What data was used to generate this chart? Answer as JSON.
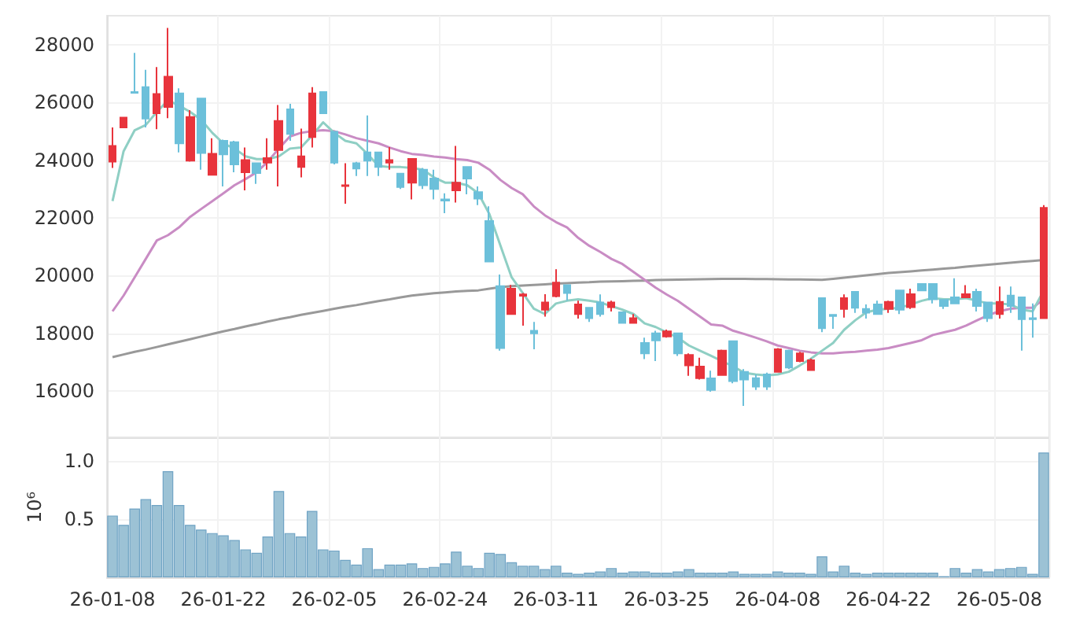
{
  "chart_data": [
    {
      "type": "candlestick",
      "categories": [
        null,
        null,
        null,
        null,
        null,
        null,
        null,
        null,
        null,
        null,
        null,
        null,
        null,
        null,
        null,
        null,
        null,
        null,
        null,
        null,
        null,
        null,
        null,
        null,
        null,
        null,
        null,
        null,
        null,
        null,
        null,
        null,
        null,
        null,
        null,
        null,
        null,
        null,
        null,
        null,
        null,
        null,
        null,
        null,
        null,
        null,
        null,
        null,
        null,
        null,
        null,
        null,
        null,
        null,
        null,
        null,
        null,
        null,
        null,
        null,
        null,
        null,
        null,
        null,
        null,
        null,
        null,
        null,
        null,
        null,
        null,
        null,
        null,
        null,
        null,
        null,
        null,
        null,
        null,
        null,
        null,
        null,
        null,
        null,
        null
      ],
      "ylim": [
        14400,
        29000
      ],
      "yticks": [
        16000,
        18000,
        20000,
        22000,
        24000,
        26000,
        28000
      ],
      "grid": true,
      "tick_labels": "y",
      "series": [
        {
          "type": "line",
          "color": "#999999",
          "values": [
            17180,
            17270,
            17360,
            17440,
            17530,
            17620,
            17710,
            17800,
            17890,
            17980,
            18070,
            18150,
            18240,
            18320,
            18410,
            18490,
            18560,
            18640,
            18710,
            18780,
            18855,
            18920,
            18980,
            19050,
            19120,
            19180,
            19250,
            19310,
            19350,
            19390,
            19420,
            19450,
            19470,
            19490,
            19550,
            19600,
            19635,
            19660,
            19680,
            19700,
            19725,
            19740,
            19760,
            19770,
            19790,
            19800,
            19810,
            19820,
            19830,
            19845,
            19855,
            19860,
            19870,
            19875,
            19885,
            19890,
            19890,
            19890,
            19885,
            19880,
            19875,
            19870,
            19865,
            19860,
            19855,
            19890,
            19930,
            19970,
            20010,
            20050,
            20090,
            20120,
            20150,
            20180,
            20210,
            20240,
            20270,
            20310,
            20345,
            20380,
            20410,
            20445,
            20480,
            20510,
            20545
          ]
        },
        {
          "type": "line",
          "color": "#c98cc4",
          "values": [
            18765,
            19310,
            19945,
            20580,
            21220,
            21400,
            21670,
            22035,
            22310,
            22580,
            22850,
            23130,
            23345,
            23580,
            23945,
            24400,
            24820,
            24945,
            25000,
            25035,
            25000,
            24890,
            24760,
            24670,
            24580,
            24435,
            24310,
            24215,
            24180,
            24125,
            24090,
            24035,
            24000,
            23910,
            23670,
            23310,
            23035,
            22820,
            22400,
            22090,
            21855,
            21670,
            21310,
            21035,
            20820,
            20580,
            20400,
            20125,
            19855,
            19580,
            19345,
            19125,
            18855,
            18580,
            18310,
            18270,
            18090,
            17980,
            17855,
            17725,
            17580,
            17490,
            17400,
            17345,
            17310,
            17310,
            17345,
            17365,
            17400,
            17435,
            17490,
            17580,
            17670,
            17765,
            17945,
            18035,
            18125,
            18270,
            18455,
            18635,
            18765,
            18855,
            18890,
            18890,
            19180
          ]
        },
        {
          "type": "line",
          "color": "#8fcfc4",
          "values": [
            22580,
            24310,
            25035,
            25217,
            25670,
            26070,
            25890,
            25670,
            25400,
            24945,
            24580,
            24400,
            24130,
            24035,
            24035,
            24130,
            24400,
            24440,
            24850,
            25310,
            24945,
            24670,
            24580,
            24215,
            23800,
            23760,
            23760,
            23730,
            23670,
            23400,
            23220,
            23220,
            23130,
            22850,
            22130,
            21035,
            19945,
            19400,
            18855,
            18670,
            19035,
            19130,
            19180,
            19130,
            19070,
            18945,
            18820,
            18670,
            18345,
            18220,
            18035,
            17855,
            17580,
            17400,
            17220,
            17035,
            16855,
            16635,
            16580,
            16545,
            16580,
            16670,
            16890,
            17125,
            17400,
            17670,
            18125,
            18455,
            18730,
            18820,
            18855,
            18890,
            19000,
            19130,
            19220,
            19180,
            19180,
            19220,
            19130,
            19035,
            19035,
            19000,
            18820,
            18765,
            19490
          ]
        },
        {
          "type": "candlestick",
          "ohlc": [
            [
              23950,
              25130,
              23730,
              24490
            ],
            [
              25130,
              25470,
              25130,
              25470
            ],
            [
              26360,
              27710,
              26320,
              26330
            ],
            [
              26530,
              27130,
              25130,
              25440
            ],
            [
              25620,
              27220,
              25070,
              26290
            ],
            [
              25840,
              28580,
              25450,
              26890
            ],
            [
              26310,
              26490,
              24270,
              24580
            ],
            [
              23980,
              25730,
              23950,
              25490
            ],
            [
              26130,
              26160,
              23670,
              24250
            ],
            [
              23490,
              24760,
              23490,
              24220
            ],
            [
              24670,
              24710,
              23090,
              24200
            ],
            [
              24620,
              24670,
              23580,
              23850
            ],
            [
              23580,
              24440,
              22950,
              24000
            ],
            [
              23890,
              23890,
              23180,
              23550
            ],
            [
              23910,
              24760,
              23670,
              24070
            ],
            [
              24350,
              25910,
              23090,
              25360
            ],
            [
              25760,
              25950,
              24670,
              24910
            ],
            [
              23760,
              25090,
              23400,
              24130
            ],
            [
              24800,
              26530,
              24440,
              26310
            ],
            [
              26360,
              26360,
              25620,
              25620
            ],
            [
              24980,
              24980,
              23850,
              23910
            ],
            [
              23100,
              23890,
              22490,
              23130
            ],
            [
              23890,
              23940,
              23450,
              23710
            ],
            [
              24270,
              25550,
              23450,
              23980
            ],
            [
              24270,
              24270,
              23450,
              23760
            ],
            [
              23910,
              24450,
              23670,
              24000
            ],
            [
              23530,
              23530,
              23000,
              23070
            ],
            [
              23220,
              24040,
              22640,
              24040
            ],
            [
              23670,
              23730,
              23000,
              23130
            ],
            [
              23360,
              23670,
              22640,
              23000
            ],
            [
              22640,
              22850,
              22160,
              22600
            ],
            [
              22950,
              24490,
              22530,
              23220
            ],
            [
              23760,
              23760,
              22820,
              23360
            ],
            [
              22890,
              23090,
              22440,
              22670
            ],
            [
              21890,
              22400,
              20490,
              20490
            ],
            [
              19640,
              20040,
              17400,
              17490
            ],
            [
              18670,
              19680,
              18670,
              19550
            ],
            [
              19300,
              19400,
              18270,
              19350
            ],
            [
              18090,
              18400,
              17450,
              18000
            ],
            [
              18820,
              19360,
              18580,
              19070
            ],
            [
              19290,
              20220,
              19250,
              19760
            ],
            [
              19670,
              19670,
              19130,
              19400
            ],
            [
              18670,
              19130,
              18510,
              19000
            ],
            [
              18890,
              18890,
              18400,
              18530
            ],
            [
              19070,
              19350,
              18580,
              18670
            ],
            [
              18910,
              19130,
              18760,
              19070
            ],
            [
              18730,
              18730,
              18360,
              18360
            ],
            [
              18360,
              18670,
              18360,
              18530
            ],
            [
              17670,
              17850,
              17110,
              17310
            ],
            [
              18000,
              18090,
              17040,
              17760
            ],
            [
              17890,
              18130,
              17850,
              18070
            ],
            [
              18000,
              18000,
              17220,
              17310
            ],
            [
              16890,
              17310,
              16530,
              17250
            ],
            [
              16450,
              17160,
              16400,
              16850
            ],
            [
              16440,
              16710,
              15980,
              16040
            ],
            [
              16560,
              17440,
              16530,
              17400
            ],
            [
              17730,
              17760,
              16270,
              16350
            ],
            [
              16670,
              16760,
              15490,
              16400
            ],
            [
              16450,
              16580,
              16040,
              16160
            ],
            [
              16580,
              16640,
              16040,
              16160
            ],
            [
              16670,
              17490,
              16640,
              17450
            ],
            [
              17400,
              17440,
              16760,
              16820
            ],
            [
              17040,
              17360,
              17000,
              17310
            ],
            [
              16730,
              17130,
              16730,
              17070
            ],
            [
              19220,
              19220,
              18040,
              18180
            ],
            [
              18640,
              18640,
              18160,
              18600
            ],
            [
              18850,
              19350,
              18550,
              19220
            ],
            [
              19440,
              19440,
              18710,
              18890
            ],
            [
              18850,
              19000,
              18510,
              18720
            ],
            [
              19000,
              19130,
              18670,
              18670
            ],
            [
              18850,
              19130,
              18710,
              19090
            ],
            [
              19490,
              19490,
              18670,
              18820
            ],
            [
              18910,
              19550,
              18850,
              19360
            ],
            [
              19710,
              19710,
              19490,
              19490
            ],
            [
              19710,
              19710,
              19040,
              19180
            ],
            [
              19160,
              19160,
              18850,
              18950
            ],
            [
              19250,
              19910,
              19040,
              19040
            ],
            [
              19250,
              19670,
              19250,
              19360
            ],
            [
              19440,
              19550,
              18760,
              18950
            ],
            [
              19070,
              19070,
              18400,
              18530
            ],
            [
              18670,
              19620,
              18510,
              19090
            ],
            [
              19310,
              19620,
              18710,
              18950
            ],
            [
              19250,
              19250,
              17400,
              18490
            ],
            [
              18530,
              19040,
              17850,
              18490
            ],
            [
              18530,
              22440,
              18530,
              22350
            ]
          ],
          "colors": [
            "#e8343c",
            "#e8343c",
            "#6cc0da",
            "#6cc0da",
            "#e8343c",
            "#e8343c",
            "#6cc0da",
            "#e8343c",
            "#6cc0da",
            "#e8343c",
            "#6cc0da",
            "#6cc0da",
            "#e8343c",
            "#6cc0da",
            "#e8343c",
            "#e8343c",
            "#6cc0da",
            "#e8343c",
            "#e8343c",
            "#6cc0da",
            "#6cc0da",
            "#e8343c",
            "#6cc0da",
            "#6cc0da",
            "#6cc0da",
            "#e8343c",
            "#6cc0da",
            "#e8343c",
            "#6cc0da",
            "#6cc0da",
            "#6cc0da",
            "#e8343c",
            "#6cc0da",
            "#6cc0da",
            "#6cc0da",
            "#6cc0da",
            "#e8343c",
            "#e8343c",
            "#6cc0da",
            "#e8343c",
            "#e8343c",
            "#6cc0da",
            "#e8343c",
            "#6cc0da",
            "#6cc0da",
            "#e8343c",
            "#6cc0da",
            "#e8343c",
            "#6cc0da",
            "#6cc0da",
            "#e8343c",
            "#6cc0da",
            "#e8343c",
            "#e8343c",
            "#6cc0da",
            "#e8343c",
            "#6cc0da",
            "#6cc0da",
            "#6cc0da",
            "#6cc0da",
            "#e8343c",
            "#6cc0da",
            "#e8343c",
            "#e8343c",
            "#6cc0da",
            "#6cc0da",
            "#e8343c",
            "#6cc0da",
            "#6cc0da",
            "#6cc0da",
            "#e8343c",
            "#6cc0da",
            "#e8343c",
            "#6cc0da",
            "#6cc0da",
            "#6cc0da",
            "#6cc0da",
            "#e8343c",
            "#6cc0da",
            "#6cc0da",
            "#e8343c",
            "#6cc0da",
            "#6cc0da",
            "#6cc0da",
            "#e8343c"
          ]
        }
      ]
    },
    {
      "type": "bar",
      "categories": [
        "26-01-08",
        null,
        null,
        null,
        null,
        null,
        null,
        null,
        null,
        null,
        "26-01-22",
        null,
        null,
        null,
        null,
        null,
        null,
        null,
        null,
        null,
        "26-02-05",
        null,
        null,
        null,
        null,
        null,
        null,
        null,
        null,
        null,
        "26-02-24",
        null,
        null,
        null,
        null,
        null,
        null,
        null,
        null,
        null,
        "26-03-11",
        null,
        null,
        null,
        null,
        null,
        null,
        null,
        null,
        null,
        "26-03-25",
        null,
        null,
        null,
        null,
        null,
        null,
        null,
        null,
        null,
        "26-04-08",
        null,
        null,
        null,
        null,
        null,
        null,
        null,
        null,
        null,
        "26-04-22",
        null,
        null,
        null,
        null,
        null,
        null,
        null,
        null,
        null,
        "26-05-08",
        null,
        null,
        null,
        null
      ],
      "ylabel": "10⁶",
      "ylim": [
        0,
        1.2
      ],
      "yticks": [
        0.5,
        {
          "value": 1,
          "label": "1.0"
        }
      ],
      "grid": true,
      "color": "#9cc2d5",
      "values": [
        0.53,
        0.45,
        0.59,
        0.67,
        0.62,
        0.91,
        0.62,
        0.45,
        0.41,
        0.38,
        0.36,
        0.32,
        0.24,
        0.21,
        0.35,
        0.74,
        0.38,
        0.35,
        0.57,
        0.24,
        0.23,
        0.15,
        0.11,
        0.25,
        0.07,
        0.11,
        0.11,
        0.12,
        0.08,
        0.09,
        0.12,
        0.22,
        0.1,
        0.08,
        0.21,
        0.2,
        0.13,
        0.1,
        0.1,
        0.07,
        0.1,
        0.04,
        0.03,
        0.04,
        0.05,
        0.08,
        0.04,
        0.05,
        0.05,
        0.04,
        0.04,
        0.05,
        0.07,
        0.04,
        0.04,
        0.04,
        0.05,
        0.03,
        0.03,
        0.03,
        0.05,
        0.04,
        0.04,
        0.03,
        0.18,
        0.05,
        0.1,
        0.04,
        0.03,
        0.04,
        0.04,
        0.04,
        0.04,
        0.04,
        0.04,
        0.01,
        0.08,
        0.04,
        0.07,
        0.05,
        0.07,
        0.08,
        0.09,
        0.03,
        1.07
      ]
    }
  ]
}
